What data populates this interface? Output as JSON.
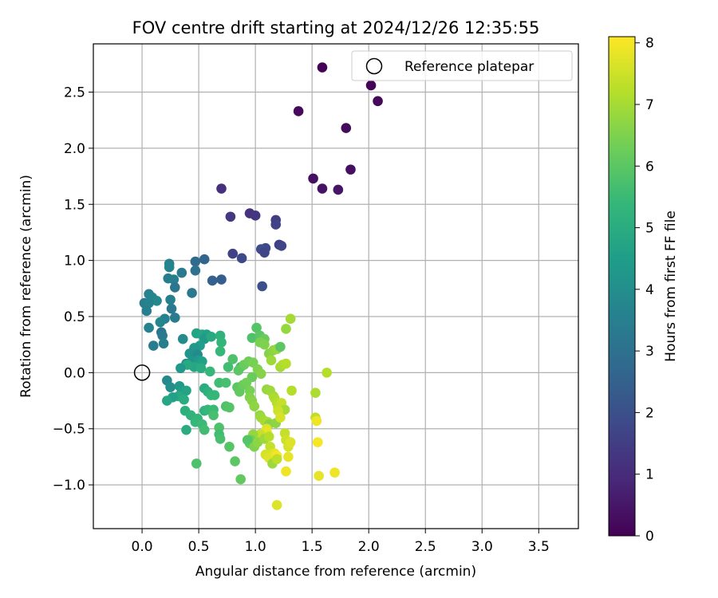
{
  "chart_data": {
    "type": "scatter",
    "title": "FOV centre drift starting at 2024/12/26 12:35:55",
    "xlabel": "Angular distance from reference (arcmin)",
    "ylabel": "Rotation from reference (arcmin)",
    "xlim": [
      -0.43,
      3.85
    ],
    "ylim": [
      -1.39,
      2.93
    ],
    "xticks": [
      "0.0",
      "0.5",
      "1.0",
      "1.5",
      "2.0",
      "2.5",
      "3.0",
      "3.5"
    ],
    "yticks": [
      "−1.0",
      "−0.5",
      "0.0",
      "0.5",
      "1.0",
      "1.5",
      "2.0",
      "2.5"
    ],
    "xtick_values": [
      0,
      0.5,
      1.0,
      1.5,
      2.0,
      2.5,
      3.0,
      3.5
    ],
    "ytick_values": [
      -1.0,
      -0.5,
      0,
      0.5,
      1.0,
      1.5,
      2.0,
      2.5
    ],
    "grid": true,
    "legend": {
      "position": "top-right",
      "entries": [
        "Reference platepar"
      ]
    },
    "reference_point": {
      "x": 0.0,
      "y": 0.0
    },
    "colorbar": {
      "label": "Hours from first FF file",
      "range": [
        0,
        8.1
      ],
      "ticks": [
        "0",
        "1",
        "2",
        "3",
        "4",
        "5",
        "6",
        "7",
        "8"
      ],
      "tick_values": [
        0,
        1,
        2,
        3,
        4,
        5,
        6,
        7,
        8
      ],
      "colormap": [
        "#440154",
        "#482878",
        "#3e4989",
        "#31688e",
        "#26828e",
        "#1f9e89",
        "#35b779",
        "#6ece58",
        "#b5de2b",
        "#fde725"
      ]
    },
    "points": [
      {
        "x": 1.59,
        "y": 2.72,
        "c": 0.05
      },
      {
        "x": 2.02,
        "y": 2.56,
        "c": 0.1
      },
      {
        "x": 2.08,
        "y": 2.42,
        "c": 0.15
      },
      {
        "x": 1.38,
        "y": 2.33,
        "c": 0.2
      },
      {
        "x": 1.8,
        "y": 2.18,
        "c": 0.25
      },
      {
        "x": 1.84,
        "y": 1.81,
        "c": 0.3
      },
      {
        "x": 1.51,
        "y": 1.73,
        "c": 0.35
      },
      {
        "x": 1.59,
        "y": 1.64,
        "c": 0.4
      },
      {
        "x": 1.73,
        "y": 1.63,
        "c": 0.45
      },
      {
        "x": 0.7,
        "y": 1.64,
        "c": 1.1
      },
      {
        "x": 0.95,
        "y": 1.42,
        "c": 1.2
      },
      {
        "x": 1.0,
        "y": 1.4,
        "c": 1.3
      },
      {
        "x": 0.78,
        "y": 1.39,
        "c": 1.4
      },
      {
        "x": 1.18,
        "y": 1.36,
        "c": 1.5
      },
      {
        "x": 1.18,
        "y": 1.32,
        "c": 1.6
      },
      {
        "x": 1.21,
        "y": 1.14,
        "c": 1.5
      },
      {
        "x": 1.23,
        "y": 1.13,
        "c": 1.7
      },
      {
        "x": 1.09,
        "y": 1.11,
        "c": 1.8
      },
      {
        "x": 1.05,
        "y": 1.1,
        "c": 1.9
      },
      {
        "x": 1.08,
        "y": 1.07,
        "c": 1.7
      },
      {
        "x": 0.8,
        "y": 1.06,
        "c": 1.6
      },
      {
        "x": 0.88,
        "y": 1.02,
        "c": 1.8
      },
      {
        "x": 1.06,
        "y": 0.77,
        "c": 2.0
      },
      {
        "x": 0.7,
        "y": 0.83,
        "c": 2.4
      },
      {
        "x": 0.62,
        "y": 0.82,
        "c": 2.5
      },
      {
        "x": 0.55,
        "y": 1.01,
        "c": 2.6
      },
      {
        "x": 0.47,
        "y": 0.99,
        "c": 2.8
      },
      {
        "x": 0.47,
        "y": 0.91,
        "c": 3.0
      },
      {
        "x": 0.24,
        "y": 0.97,
        "c": 3.6
      },
      {
        "x": 0.24,
        "y": 0.94,
        "c": 3.7
      },
      {
        "x": 0.35,
        "y": 0.89,
        "c": 3.3
      },
      {
        "x": 0.23,
        "y": 0.84,
        "c": 3.4
      },
      {
        "x": 0.28,
        "y": 0.83,
        "c": 3.5
      },
      {
        "x": 0.29,
        "y": 0.76,
        "c": 3.2
      },
      {
        "x": 0.44,
        "y": 0.71,
        "c": 3.3
      },
      {
        "x": 0.06,
        "y": 0.7,
        "c": 3.6
      },
      {
        "x": 0.09,
        "y": 0.67,
        "c": 3.7
      },
      {
        "x": 0.13,
        "y": 0.64,
        "c": 3.8
      },
      {
        "x": 0.02,
        "y": 0.62,
        "c": 3.4
      },
      {
        "x": 0.25,
        "y": 0.65,
        "c": 3.5
      },
      {
        "x": 0.06,
        "y": 0.62,
        "c": 3.6
      },
      {
        "x": 0.04,
        "y": 0.55,
        "c": 3.5
      },
      {
        "x": 0.26,
        "y": 0.57,
        "c": 3.3
      },
      {
        "x": 0.29,
        "y": 0.49,
        "c": 3.4
      },
      {
        "x": 0.2,
        "y": 0.48,
        "c": 3.6
      },
      {
        "x": 0.16,
        "y": 0.45,
        "c": 3.7
      },
      {
        "x": 0.06,
        "y": 0.4,
        "c": 3.6
      },
      {
        "x": 0.17,
        "y": 0.36,
        "c": 3.2
      },
      {
        "x": 0.18,
        "y": 0.33,
        "c": 3.3
      },
      {
        "x": 0.1,
        "y": 0.24,
        "c": 3.4
      },
      {
        "x": 0.19,
        "y": 0.26,
        "c": 3.5
      },
      {
        "x": 0.36,
        "y": 0.3,
        "c": 3.9
      },
      {
        "x": 0.48,
        "y": 0.35,
        "c": 4.7
      },
      {
        "x": 0.53,
        "y": 0.34,
        "c": 4.8
      },
      {
        "x": 0.57,
        "y": 0.34,
        "c": 4.6
      },
      {
        "x": 0.55,
        "y": 0.3,
        "c": 4.4
      },
      {
        "x": 0.61,
        "y": 0.32,
        "c": 4.9
      },
      {
        "x": 0.69,
        "y": 0.33,
        "c": 5.2
      },
      {
        "x": 0.7,
        "y": 0.27,
        "c": 5.3
      },
      {
        "x": 0.69,
        "y": 0.19,
        "c": 5.4
      },
      {
        "x": 0.51,
        "y": 0.24,
        "c": 4.5
      },
      {
        "x": 0.46,
        "y": 0.22,
        "c": 4.3
      },
      {
        "x": 0.42,
        "y": 0.17,
        "c": 4.2
      },
      {
        "x": 0.47,
        "y": 0.16,
        "c": 4.1
      },
      {
        "x": 0.49,
        "y": 0.16,
        "c": 3.9
      },
      {
        "x": 0.39,
        "y": 0.08,
        "c": 4.0
      },
      {
        "x": 0.44,
        "y": 0.1,
        "c": 4.2
      },
      {
        "x": 0.5,
        "y": 0.11,
        "c": 4.4
      },
      {
        "x": 0.53,
        "y": 0.1,
        "c": 4.6
      },
      {
        "x": 0.46,
        "y": 0.05,
        "c": 4.8
      },
      {
        "x": 0.4,
        "y": 0.07,
        "c": 4.9
      },
      {
        "x": 0.34,
        "y": 0.04,
        "c": 4.3
      },
      {
        "x": 0.52,
        "y": 0.04,
        "c": 5.0
      },
      {
        "x": 0.6,
        "y": 0.01,
        "c": 5.4
      },
      {
        "x": 0.76,
        "y": 0.05,
        "c": 5.6
      },
      {
        "x": 0.8,
        "y": 0.12,
        "c": 5.8
      },
      {
        "x": 0.87,
        "y": 0.05,
        "c": 5.7
      },
      {
        "x": 0.85,
        "y": 0.02,
        "c": 6.0
      },
      {
        "x": 0.9,
        "y": 0.07,
        "c": 6.2
      },
      {
        "x": 0.94,
        "y": 0.1,
        "c": 6.3
      },
      {
        "x": 0.98,
        "y": 0.09,
        "c": 6.4
      },
      {
        "x": 1.02,
        "y": 0.03,
        "c": 6.5
      },
      {
        "x": 1.05,
        "y": -0.01,
        "c": 6.6
      },
      {
        "x": 0.97,
        "y": -0.04,
        "c": 6.2
      },
      {
        "x": 0.97,
        "y": 0.31,
        "c": 5.8
      },
      {
        "x": 1.01,
        "y": 0.4,
        "c": 5.9
      },
      {
        "x": 1.04,
        "y": 0.33,
        "c": 6.0
      },
      {
        "x": 1.08,
        "y": 0.3,
        "c": 6.2
      },
      {
        "x": 1.04,
        "y": 0.27,
        "c": 6.4
      },
      {
        "x": 1.08,
        "y": 0.25,
        "c": 6.5
      },
      {
        "x": 1.12,
        "y": 0.17,
        "c": 6.6
      },
      {
        "x": 1.16,
        "y": 0.2,
        "c": 6.7
      },
      {
        "x": 1.19,
        "y": 0.21,
        "c": 6.8
      },
      {
        "x": 1.22,
        "y": 0.23,
        "c": 6.0
      },
      {
        "x": 1.14,
        "y": 0.11,
        "c": 6.9
      },
      {
        "x": 1.22,
        "y": 0.05,
        "c": 7.0
      },
      {
        "x": 1.24,
        "y": 0.07,
        "c": 7.1
      },
      {
        "x": 1.27,
        "y": 0.08,
        "c": 7.2
      },
      {
        "x": 1.27,
        "y": 0.39,
        "c": 6.8
      },
      {
        "x": 1.31,
        "y": 0.48,
        "c": 7.0
      },
      {
        "x": 1.63,
        "y": 0.0,
        "c": 7.2
      },
      {
        "x": 0.22,
        "y": -0.07,
        "c": 3.8
      },
      {
        "x": 0.25,
        "y": -0.13,
        "c": 4.0
      },
      {
        "x": 0.33,
        "y": -0.12,
        "c": 4.3
      },
      {
        "x": 0.35,
        "y": -0.17,
        "c": 4.5
      },
      {
        "x": 0.39,
        "y": -0.16,
        "c": 4.7
      },
      {
        "x": 0.32,
        "y": -0.21,
        "c": 4.9
      },
      {
        "x": 0.27,
        "y": -0.22,
        "c": 4.6
      },
      {
        "x": 0.22,
        "y": -0.25,
        "c": 4.8
      },
      {
        "x": 0.37,
        "y": -0.24,
        "c": 5.0
      },
      {
        "x": 0.38,
        "y": -0.34,
        "c": 5.1
      },
      {
        "x": 0.43,
        "y": -0.38,
        "c": 5.2
      },
      {
        "x": 0.49,
        "y": -0.41,
        "c": 5.3
      },
      {
        "x": 0.47,
        "y": -0.44,
        "c": 5.4
      },
      {
        "x": 0.53,
        "y": -0.46,
        "c": 5.5
      },
      {
        "x": 0.55,
        "y": -0.51,
        "c": 5.6
      },
      {
        "x": 0.39,
        "y": -0.51,
        "c": 5.0
      },
      {
        "x": 0.55,
        "y": -0.34,
        "c": 5.2
      },
      {
        "x": 0.58,
        "y": -0.33,
        "c": 5.4
      },
      {
        "x": 0.63,
        "y": -0.33,
        "c": 5.5
      },
      {
        "x": 0.63,
        "y": -0.38,
        "c": 5.7
      },
      {
        "x": 0.68,
        "y": -0.49,
        "c": 5.8
      },
      {
        "x": 0.68,
        "y": -0.55,
        "c": 5.6
      },
      {
        "x": 0.69,
        "y": -0.59,
        "c": 5.7
      },
      {
        "x": 0.77,
        "y": -0.66,
        "c": 5.9
      },
      {
        "x": 0.82,
        "y": -0.79,
        "c": 6.0
      },
      {
        "x": 0.87,
        "y": -0.95,
        "c": 6.1
      },
      {
        "x": 0.48,
        "y": -0.81,
        "c": 5.8
      },
      {
        "x": 0.55,
        "y": -0.14,
        "c": 5.0
      },
      {
        "x": 0.58,
        "y": -0.17,
        "c": 5.1
      },
      {
        "x": 0.61,
        "y": -0.2,
        "c": 5.3
      },
      {
        "x": 0.64,
        "y": -0.2,
        "c": 5.4
      },
      {
        "x": 0.68,
        "y": -0.09,
        "c": 5.6
      },
      {
        "x": 0.74,
        "y": -0.09,
        "c": 5.7
      },
      {
        "x": 0.74,
        "y": -0.3,
        "c": 5.8
      },
      {
        "x": 0.77,
        "y": -0.31,
        "c": 5.9
      },
      {
        "x": 0.84,
        "y": -0.13,
        "c": 6.0
      },
      {
        "x": 0.86,
        "y": -0.17,
        "c": 6.1
      },
      {
        "x": 0.89,
        "y": -0.11,
        "c": 6.2
      },
      {
        "x": 0.92,
        "y": -0.09,
        "c": 6.3
      },
      {
        "x": 0.95,
        "y": -0.16,
        "c": 6.4
      },
      {
        "x": 0.95,
        "y": -0.22,
        "c": 6.5
      },
      {
        "x": 0.97,
        "y": -0.25,
        "c": 6.6
      },
      {
        "x": 0.99,
        "y": -0.3,
        "c": 6.7
      },
      {
        "x": 1.04,
        "y": -0.38,
        "c": 6.8
      },
      {
        "x": 1.05,
        "y": -0.4,
        "c": 6.9
      },
      {
        "x": 1.08,
        "y": -0.43,
        "c": 7.0
      },
      {
        "x": 1.11,
        "y": -0.44,
        "c": 7.1
      },
      {
        "x": 1.12,
        "y": -0.46,
        "c": 6.6
      },
      {
        "x": 1.18,
        "y": -0.45,
        "c": 6.7
      },
      {
        "x": 1.1,
        "y": -0.15,
        "c": 6.8
      },
      {
        "x": 1.13,
        "y": -0.16,
        "c": 6.9
      },
      {
        "x": 1.16,
        "y": -0.21,
        "c": 7.0
      },
      {
        "x": 1.17,
        "y": -0.23,
        "c": 7.1
      },
      {
        "x": 1.19,
        "y": -0.27,
        "c": 7.2
      },
      {
        "x": 1.2,
        "y": -0.31,
        "c": 7.3
      },
      {
        "x": 1.23,
        "y": -0.27,
        "c": 7.4
      },
      {
        "x": 1.26,
        "y": -0.33,
        "c": 7.0
      },
      {
        "x": 1.2,
        "y": -0.34,
        "c": 7.5
      },
      {
        "x": 1.22,
        "y": -0.4,
        "c": 7.6
      },
      {
        "x": 1.1,
        "y": -0.5,
        "c": 7.7
      },
      {
        "x": 1.1,
        "y": -0.53,
        "c": 7.8
      },
      {
        "x": 1.04,
        "y": -0.55,
        "c": 7.4
      },
      {
        "x": 0.98,
        "y": -0.55,
        "c": 6.8
      },
      {
        "x": 0.96,
        "y": -0.6,
        "c": 6.3
      },
      {
        "x": 0.95,
        "y": -0.63,
        "c": 6.1
      },
      {
        "x": 0.93,
        "y": -0.6,
        "c": 5.9
      },
      {
        "x": 0.99,
        "y": -0.66,
        "c": 6.5
      },
      {
        "x": 1.02,
        "y": -0.62,
        "c": 6.7
      },
      {
        "x": 1.08,
        "y": -0.59,
        "c": 6.9
      },
      {
        "x": 1.12,
        "y": -0.57,
        "c": 7.2
      },
      {
        "x": 1.13,
        "y": -0.66,
        "c": 7.4
      },
      {
        "x": 1.14,
        "y": -0.72,
        "c": 7.5
      },
      {
        "x": 1.09,
        "y": -0.73,
        "c": 7.6
      },
      {
        "x": 1.12,
        "y": -0.76,
        "c": 7.7
      },
      {
        "x": 1.17,
        "y": -0.72,
        "c": 7.8
      },
      {
        "x": 1.19,
        "y": -0.74,
        "c": 8.0
      },
      {
        "x": 1.15,
        "y": -0.81,
        "c": 6.9
      },
      {
        "x": 1.19,
        "y": -0.77,
        "c": 7.3
      },
      {
        "x": 1.26,
        "y": -0.54,
        "c": 7.4
      },
      {
        "x": 1.27,
        "y": -0.6,
        "c": 7.5
      },
      {
        "x": 1.29,
        "y": -0.66,
        "c": 7.6
      },
      {
        "x": 1.31,
        "y": -0.62,
        "c": 7.7
      },
      {
        "x": 1.29,
        "y": -0.75,
        "c": 7.8
      },
      {
        "x": 1.27,
        "y": -0.88,
        "c": 7.9
      },
      {
        "x": 1.19,
        "y": -1.18,
        "c": 7.7
      },
      {
        "x": 1.32,
        "y": -0.16,
        "c": 7.2
      },
      {
        "x": 1.53,
        "y": -0.18,
        "c": 7.1
      },
      {
        "x": 1.53,
        "y": -0.4,
        "c": 7.3
      },
      {
        "x": 1.54,
        "y": -0.43,
        "c": 7.9
      },
      {
        "x": 1.55,
        "y": -0.62,
        "c": 8.0
      },
      {
        "x": 1.56,
        "y": -0.92,
        "c": 7.8
      },
      {
        "x": 1.7,
        "y": -0.89,
        "c": 7.9
      }
    ]
  }
}
